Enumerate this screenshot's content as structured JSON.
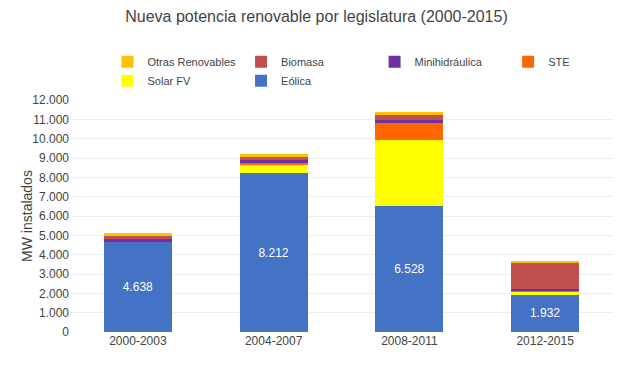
{
  "chart_data": {
    "type": "bar",
    "stacked": true,
    "title": "Nueva potencia renovable por legislatura (2000-2015)",
    "ylabel": "MW instalados",
    "categories": [
      "2000-2003",
      "2004-2007",
      "2008-2011",
      "2012-2015"
    ],
    "series": [
      {
        "name": "Eólica",
        "color": "#4472C4",
        "values": [
          4638,
          8212,
          6528,
          1932
        ],
        "data_labels": true,
        "value_labels": [
          "4.638",
          "8.212",
          "6.528",
          "1.932"
        ]
      },
      {
        "name": "Solar FV",
        "color": "#FFFF00",
        "values": [
          0,
          450,
          3400,
          150
        ]
      },
      {
        "name": "STE",
        "color": "#FF6600",
        "values": [
          0,
          80,
          900,
          80
        ]
      },
      {
        "name": "Minihidráulica",
        "color": "#7030A0",
        "values": [
          180,
          130,
          130,
          40
        ]
      },
      {
        "name": "Biomasa",
        "color": "#C0504D",
        "values": [
          190,
          190,
          270,
          1380
        ]
      },
      {
        "name": "Otras Renovables",
        "color": "#FFC000",
        "values": [
          100,
          130,
          170,
          80
        ]
      }
    ],
    "ylim": [
      0,
      12000
    ],
    "yticks": [
      0,
      {
        "value": 1000,
        "label": "1.000"
      },
      {
        "value": 2000,
        "label": "2.000"
      },
      {
        "value": 3000,
        "label": "3.000"
      },
      {
        "value": 4000,
        "label": "4.000"
      },
      {
        "value": 5000,
        "label": "5.000"
      },
      {
        "value": 6000,
        "label": "6.000"
      },
      {
        "value": 7000,
        "label": "7.000"
      },
      {
        "value": 8000,
        "label": "8.000"
      },
      {
        "value": 9000,
        "label": "9.000"
      },
      {
        "value": 10000,
        "label": "10.000"
      },
      {
        "value": 11000,
        "label": "11.000"
      },
      {
        "value": 12000,
        "label": "12.000"
      }
    ],
    "grid": true,
    "legend": "top"
  }
}
